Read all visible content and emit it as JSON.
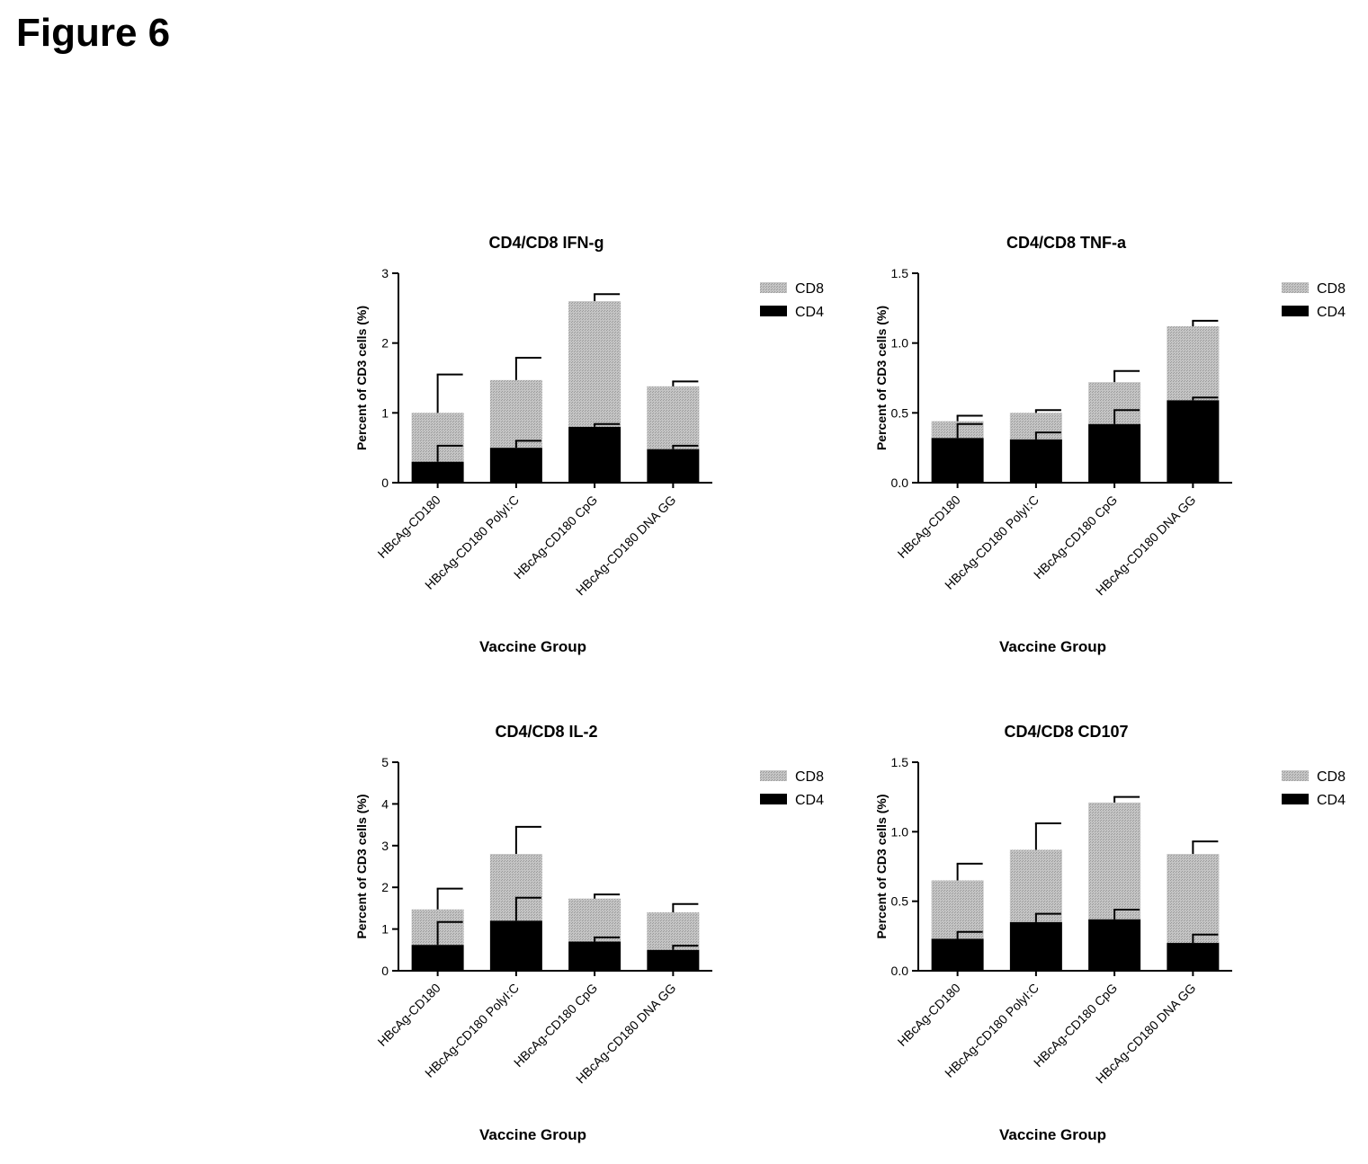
{
  "figure_title": "Figure 6",
  "colors": {
    "cd8_fill": "#c4c4c4",
    "cd8_hatch": "#9a9a9a",
    "cd4_fill": "#000000",
    "axis": "#000000"
  },
  "chart_data": [
    {
      "type": "bar",
      "stacked": true,
      "title": "CD4/CD8 IFN-g",
      "xlabel": "Vaccine Group",
      "ylabel": "Percent of CD3 cells (%)",
      "ylim": [
        0,
        3
      ],
      "yticks": [
        "0",
        "1",
        "2",
        "3"
      ],
      "categories": [
        "HBcAg-CD180",
        "HBcAg-CD180 PolyI:C",
        "HBcAg-CD180 CpG",
        "HBcAg-CD180 DNA GG"
      ],
      "legend_position": "top-right",
      "series": [
        {
          "name": "CD8",
          "values": [
            0.7,
            0.97,
            1.8,
            0.9
          ],
          "errors": [
            0.55,
            0.32,
            0.1,
            0.07
          ]
        },
        {
          "name": "CD4",
          "values": [
            0.3,
            0.5,
            0.8,
            0.48
          ],
          "errors": [
            0.23,
            0.1,
            0.04,
            0.05
          ]
        }
      ]
    },
    {
      "type": "bar",
      "stacked": true,
      "title": "CD4/CD8 TNF-a",
      "xlabel": "Vaccine Group",
      "ylabel": "Percent of CD3 cells (%)",
      "ylim": [
        0,
        1.5
      ],
      "yticks": [
        "0.0",
        "0.5",
        "1.0",
        "1.5"
      ],
      "categories": [
        "HBcAg-CD180",
        "HBcAg-CD180 PolyI:C",
        "HBcAg-CD180 CpG",
        "HBcAg-CD180 DNA GG"
      ],
      "legend_position": "top-right",
      "series": [
        {
          "name": "CD8",
          "values": [
            0.12,
            0.19,
            0.3,
            0.53
          ],
          "errors": [
            0.04,
            0.02,
            0.08,
            0.04
          ]
        },
        {
          "name": "CD4",
          "values": [
            0.32,
            0.31,
            0.42,
            0.59
          ],
          "errors": [
            0.1,
            0.05,
            0.1,
            0.02
          ]
        }
      ]
    },
    {
      "type": "bar",
      "stacked": true,
      "title": "CD4/CD8 IL-2",
      "xlabel": "Vaccine Group",
      "ylabel": "Percent of CD3 cells (%)",
      "ylim": [
        0,
        5
      ],
      "yticks": [
        "0",
        "1",
        "2",
        "3",
        "4",
        "5"
      ],
      "categories": [
        "HBcAg-CD180",
        "HBcAg-CD180 PolyI:C",
        "HBcAg-CD180 CpG",
        "HBcAg-CD180 DNA GG"
      ],
      "legend_position": "top-right",
      "series": [
        {
          "name": "CD8",
          "values": [
            0.85,
            1.6,
            1.03,
            0.9
          ],
          "errors": [
            0.5,
            0.65,
            0.1,
            0.2
          ]
        },
        {
          "name": "CD4",
          "values": [
            0.62,
            1.2,
            0.7,
            0.5
          ],
          "errors": [
            0.55,
            0.55,
            0.1,
            0.1
          ]
        }
      ]
    },
    {
      "type": "bar",
      "stacked": true,
      "title": "CD4/CD8 CD107",
      "xlabel": "Vaccine Group",
      "ylabel": "Percent of CD3 cells (%)",
      "ylim": [
        0,
        1.5
      ],
      "yticks": [
        "0.0",
        "0.5",
        "1.0",
        "1.5"
      ],
      "categories": [
        "HBcAg-CD180",
        "HBcAg-CD180 PolyI:C",
        "HBcAg-CD180 CpG",
        "HBcAg-CD180 DNA GG"
      ],
      "legend_position": "top-right",
      "series": [
        {
          "name": "CD8",
          "values": [
            0.42,
            0.52,
            0.84,
            0.64
          ],
          "errors": [
            0.12,
            0.19,
            0.04,
            0.09
          ]
        },
        {
          "name": "CD4",
          "values": [
            0.23,
            0.35,
            0.37,
            0.2
          ],
          "errors": [
            0.05,
            0.06,
            0.07,
            0.06
          ]
        }
      ]
    }
  ]
}
